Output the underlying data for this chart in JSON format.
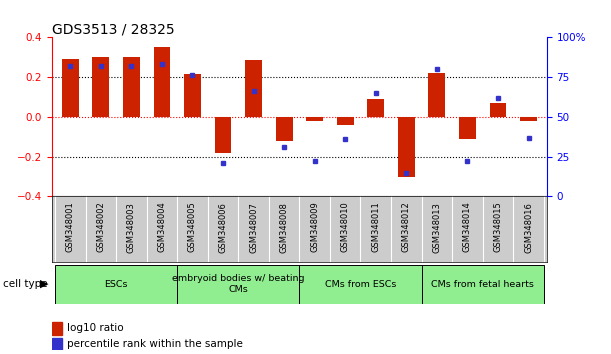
{
  "title": "GDS3513 / 28325",
  "samples": [
    "GSM348001",
    "GSM348002",
    "GSM348003",
    "GSM348004",
    "GSM348005",
    "GSM348006",
    "GSM348007",
    "GSM348008",
    "GSM348009",
    "GSM348010",
    "GSM348011",
    "GSM348012",
    "GSM348013",
    "GSM348014",
    "GSM348015",
    "GSM348016"
  ],
  "log10_ratio": [
    0.29,
    0.3,
    0.3,
    0.35,
    0.215,
    -0.18,
    0.285,
    -0.12,
    -0.02,
    -0.04,
    0.09,
    -0.3,
    0.22,
    -0.11,
    0.07,
    -0.02
  ],
  "percentile_rank": [
    82,
    82,
    82,
    83,
    76,
    21,
    66,
    31,
    22,
    36,
    65,
    15,
    80,
    22,
    62,
    37
  ],
  "cell_type_groups": [
    {
      "label": "ESCs",
      "start": 0,
      "end": 4
    },
    {
      "label": "embryoid bodies w/ beating\nCMs",
      "start": 4,
      "end": 8
    },
    {
      "label": "CMs from ESCs",
      "start": 8,
      "end": 12
    },
    {
      "label": "CMs from fetal hearts",
      "start": 12,
      "end": 16
    }
  ],
  "bar_color_red": "#CC2200",
  "bar_color_blue": "#3333CC",
  "cell_type_color": "#90EE90",
  "sample_box_color": "#CCCCCC",
  "ylim_left": [
    -0.4,
    0.4
  ],
  "ylim_right": [
    0,
    100
  ],
  "yticks_left": [
    -0.4,
    -0.2,
    0,
    0.2,
    0.4
  ],
  "yticks_right": [
    0,
    25,
    50,
    75,
    100
  ],
  "ytick_right_labels": [
    "0",
    "25",
    "50",
    "75",
    "100%"
  ],
  "hlines_dotted": [
    -0.2,
    0.2
  ],
  "legend_red": "log10 ratio",
  "legend_blue": "percentile rank within the sample",
  "background_color": "#ffffff"
}
